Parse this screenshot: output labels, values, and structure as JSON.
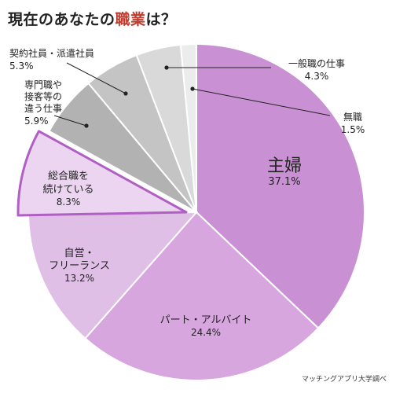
{
  "title": {
    "prefix": "現在のあなたの",
    "accent": "職業",
    "suffix": "は？"
  },
  "source": "マッチングアプリ大学調べ",
  "chart_data": {
    "type": "pie",
    "title": "現在のあなたの職業は？",
    "start": "12 o'clock, clockwise",
    "slices": [
      {
        "label": "主婦",
        "value": 37.1,
        "pct": "37.1%",
        "color": "#c990d4"
      },
      {
        "label": "パート・アルバイト",
        "value": 24.4,
        "pct": "24.4%",
        "color": "#d7a6de"
      },
      {
        "label": "自営・フリーランス",
        "value": 13.2,
        "pct": "13.2%",
        "color": "#e0bfe6"
      },
      {
        "label": "総合職を続けている",
        "value": 8.3,
        "pct": "8.3%",
        "color": "#ecd5f0",
        "highlight": true
      },
      {
        "label": "専門職や接客等の違う仕事",
        "value": 5.9,
        "pct": "5.9%",
        "color": "#b2b2b2"
      },
      {
        "label": "契約社員・派遣社員",
        "value": 5.3,
        "pct": "5.3%",
        "color": "#c4c4c4"
      },
      {
        "label": "一般職の仕事",
        "value": 4.3,
        "pct": "4.3%",
        "color": "#d9d9d9"
      },
      {
        "label": "無職",
        "value": 1.5,
        "pct": "1.5%",
        "color": "#ececec"
      }
    ],
    "label_lines": {
      "主婦": [
        "主婦"
      ],
      "パート・アルバイト": [
        "パート・アルバイト"
      ],
      "自営・フリーランス": [
        "自営・",
        "フリーランス"
      ],
      "総合職を続けている": [
        "総合職を",
        "続けている"
      ],
      "専門職や接客等の違う仕事": [
        "専門職や",
        "接客等の",
        "違う仕事"
      ],
      "契約社員・派遣社員": [
        "契約社員・派遣社員"
      ],
      "一般職の仕事": [
        "一般職の仕事"
      ],
      "無職": [
        "無職"
      ]
    }
  }
}
